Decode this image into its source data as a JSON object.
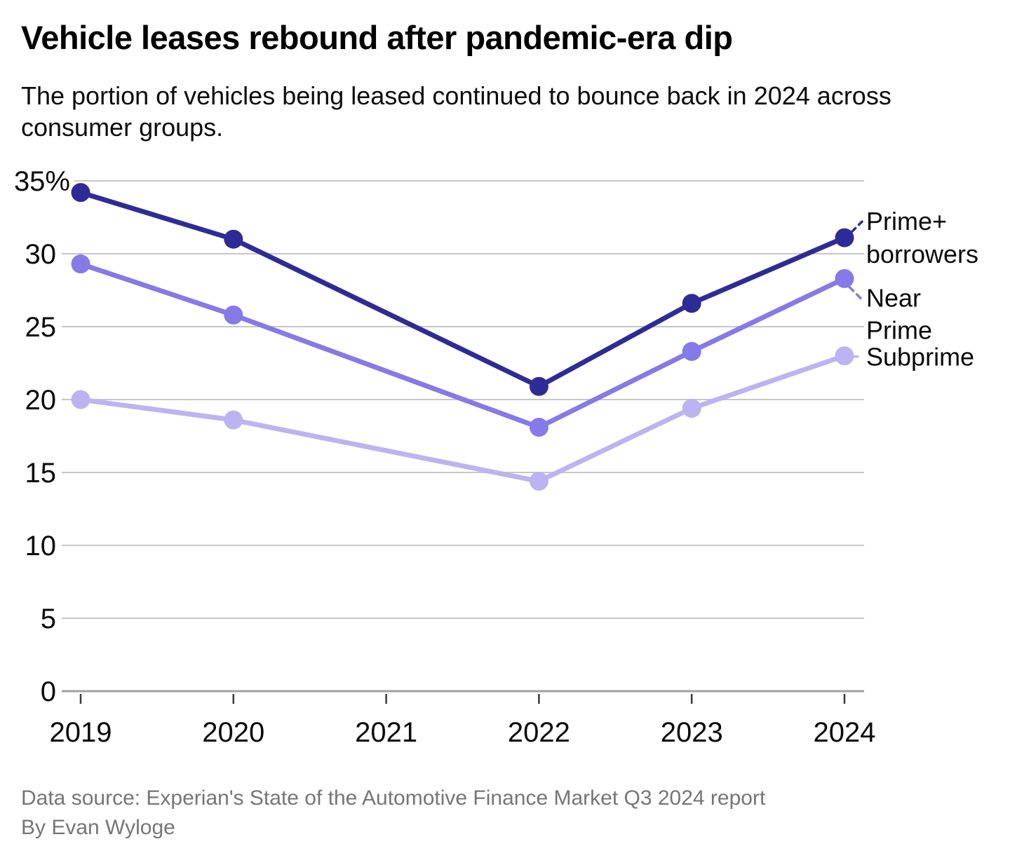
{
  "title": "Vehicle leases rebound after pandemic-era dip",
  "subtitle": "The portion of vehicles being leased continued to bounce back in 2024 across consumer groups.",
  "footer": {
    "source": "Data source: Experian's State of the Automotive Finance Market Q3 2024 report",
    "byline": "By Evan Wyloge"
  },
  "colors": {
    "prime_plus": "#2e2b97",
    "near_prime": "#8679e8",
    "subprime": "#bcb4f1",
    "gridline": "#c7c7c7",
    "axis_line": "#a0a0a0",
    "tick_mark": "#3a3a3a",
    "label_text": "#0a0a0a"
  },
  "chart_data": {
    "type": "line",
    "x": [
      2019,
      2020,
      2021,
      2022,
      2023,
      2024
    ],
    "series": [
      {
        "name": "Prime+ borrowers",
        "label_lines": [
          "Prime+",
          "borrowers"
        ],
        "color": "#2e2b97",
        "values": [
          34.2,
          31.0,
          null,
          20.9,
          26.6,
          31.1
        ]
      },
      {
        "name": "Near Prime",
        "label_lines": [
          "Near",
          "Prime"
        ],
        "color": "#8679e8",
        "values": [
          29.3,
          25.8,
          null,
          18.1,
          23.3,
          28.3
        ]
      },
      {
        "name": "Subprime",
        "label_lines": [
          "Subprime"
        ],
        "color": "#bcb4f1",
        "values": [
          20.0,
          18.6,
          null,
          14.4,
          19.4,
          23.0
        ]
      }
    ],
    "ylim": [
      0,
      35
    ],
    "ytick_step": 5,
    "ytick_labels": [
      "0",
      "5",
      "10",
      "15",
      "20",
      "25",
      "30",
      "35%"
    ],
    "xtick_labels": [
      "2019",
      "2020",
      "2021",
      "2022",
      "2023",
      "2024"
    ],
    "grid": true,
    "legend_position": "right-edge-labels",
    "title": "Vehicle leases rebound after pandemic-era dip",
    "xlabel": "",
    "ylabel": ""
  }
}
